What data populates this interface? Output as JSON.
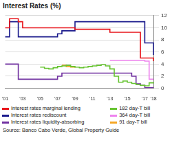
{
  "chart_data": {
    "type": "line",
    "title": "Interest Rates (%)",
    "source": "Source: Banco Cabo Verde, Global Property Guide",
    "categories": [
      "'01",
      null,
      null,
      null,
      "'03",
      null,
      null,
      null,
      "'05",
      null,
      null,
      null,
      "'07",
      null,
      null,
      null,
      "'09",
      null,
      null,
      null,
      "'11",
      null,
      null,
      null,
      "'13",
      null,
      null,
      null,
      "'15",
      null,
      null,
      null,
      "'17",
      null,
      "'18"
    ],
    "series": [
      {
        "name": "Interest rates marginal lending",
        "color": "#e8141b",
        "values": [
          10,
          11.5,
          11.5,
          11,
          10,
          10,
          10,
          10,
          10,
          10,
          10,
          10,
          10,
          10,
          10,
          10,
          9.75,
          9.75,
          9.75,
          9.75,
          9.75,
          9.75,
          9.75,
          9.75,
          9.25,
          9.25,
          9.25,
          9.25,
          9.25,
          9.25,
          9.25,
          5,
          5,
          5,
          4.5
        ]
      },
      {
        "name": "182 day-T bill",
        "color": "#66c430",
        "values": [
          null,
          null,
          null,
          null,
          null,
          null,
          null,
          null,
          3.5,
          3.3,
          3.2,
          3.4,
          3.6,
          3.7,
          3.8,
          3.6,
          3.5,
          3.4,
          3.5,
          3.6,
          3.7,
          3.8,
          3.9,
          3.7,
          3.2,
          2.0,
          1.0,
          1.2,
          1.0,
          0.8,
          0.6,
          0.5,
          0.4,
          0.9,
          1.0
        ]
      },
      {
        "name": "Interest rates rediscount",
        "color": "#1a1a8c",
        "values": [
          8.5,
          11,
          11,
          8.5,
          8.5,
          8.5,
          8.5,
          8.5,
          8.5,
          8.5,
          8.5,
          8.5,
          9,
          9.5,
          9.5,
          9.5,
          11,
          11,
          11,
          11,
          11,
          11,
          11,
          11,
          11,
          11,
          11,
          11,
          11,
          11,
          11,
          11,
          7.5,
          7.5,
          5.5
        ]
      },
      {
        "name": "364 day-T bill",
        "color": "#ee82ee",
        "values": [
          null,
          null,
          null,
          null,
          null,
          null,
          null,
          null,
          null,
          null,
          null,
          null,
          null,
          null,
          null,
          null,
          null,
          null,
          null,
          null,
          null,
          null,
          null,
          null,
          4.6,
          4.6,
          4.6,
          4.6,
          4.6,
          4.6,
          4.6,
          4.6,
          4.5,
          1.5,
          1.5
        ]
      },
      {
        "name": "Interest rates liquidity-absorbing",
        "color": "#7030a0",
        "values": [
          4,
          4,
          4,
          1.5,
          1.5,
          1.5,
          1.5,
          1.5,
          1.5,
          1.5,
          1.5,
          1.5,
          2,
          2.5,
          2.5,
          2.5,
          2.5,
          2.5,
          2.5,
          2.5,
          2.5,
          2.5,
          2.5,
          2.5,
          2.5,
          2.5,
          2.5,
          2.5,
          2.5,
          2,
          0.75,
          0.5,
          0.1,
          0.1,
          0.1
        ]
      },
      {
        "name": "91 day-T bill",
        "color": "#f5a623",
        "values": [
          null,
          null,
          null,
          null,
          null,
          null,
          null,
          null,
          null,
          null,
          null,
          null,
          null,
          3.8,
          3.6,
          3.5,
          3.4,
          null,
          null,
          null,
          null,
          null,
          null,
          null,
          null,
          null,
          null,
          null,
          null,
          null,
          null,
          null,
          null,
          null,
          null
        ]
      }
    ],
    "ylim": [
      0,
      12
    ],
    "yticks": [
      0,
      2,
      4,
      6,
      8,
      10,
      12
    ],
    "grid": true,
    "legend": "bottom"
  }
}
